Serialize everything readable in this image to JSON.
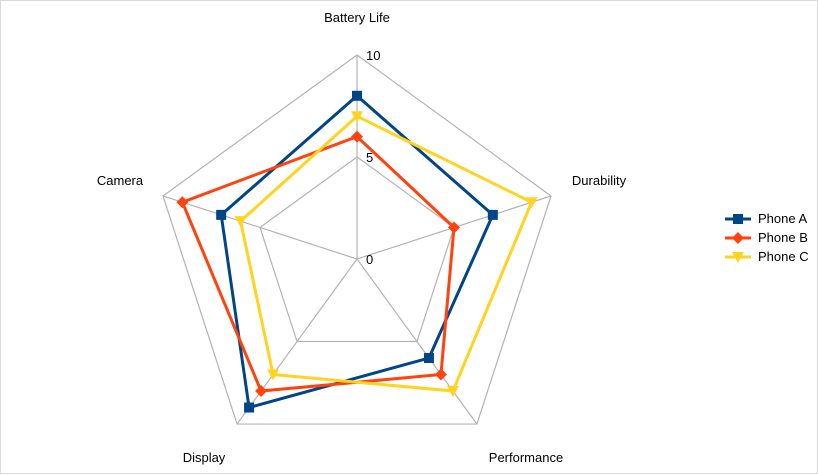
{
  "chart_data": {
    "type": "radar",
    "title": "",
    "axes": [
      "Battery Life",
      "Durability",
      "Performance",
      "Display",
      "Camera"
    ],
    "range": [
      0,
      10
    ],
    "ticks": [
      {
        "value": 0,
        "label": "0"
      },
      {
        "value": 5,
        "label": "5"
      },
      {
        "value": 10,
        "label": "10"
      }
    ],
    "grid": true,
    "legend_position": "right",
    "series": [
      {
        "name": "Phone A",
        "values": [
          8,
          7,
          6,
          9,
          7
        ],
        "color": "#004586",
        "marker": "square"
      },
      {
        "name": "Phone B",
        "values": [
          6,
          5,
          7,
          8,
          9
        ],
        "color": "#ff420e",
        "marker": "diamond"
      },
      {
        "name": "Phone C",
        "values": [
          7,
          9,
          8,
          7,
          6
        ],
        "color": "#ffd320",
        "marker": "triangle-down"
      }
    ]
  }
}
